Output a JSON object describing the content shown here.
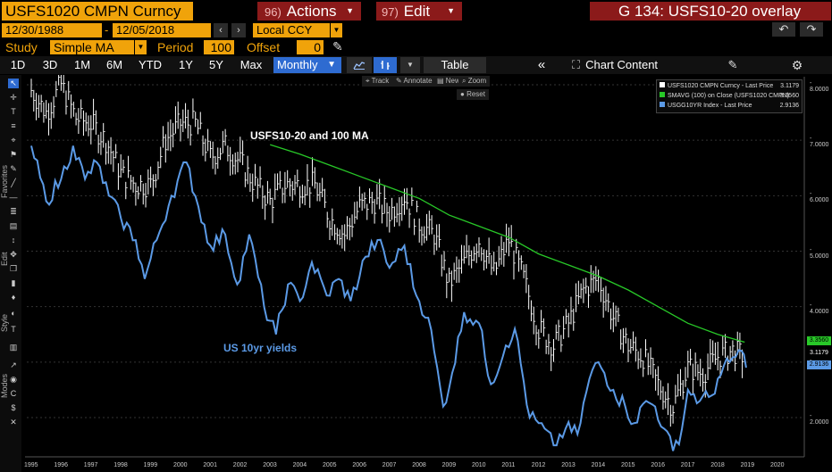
{
  "title_bar": {
    "ticker": "USFS1020 CMPN Curncy",
    "actions_num": "96)",
    "actions_label": "Actions",
    "edit_num": "97)",
    "edit_label": "Edit",
    "page_title": "G 134: USFS10-20 overlay"
  },
  "date_range": {
    "start": "12/30/1988",
    "separator": "-",
    "end": "12/05/2018",
    "currency": "Local CCY"
  },
  "study": {
    "label": "Study",
    "value": "Simple MA",
    "period_label": "Period",
    "period_value": "100",
    "offset_label": "Offset",
    "offset_value": "0"
  },
  "toolbar": {
    "timeframes": [
      "1D",
      "3D",
      "1M",
      "6M",
      "YTD",
      "1Y",
      "5Y",
      "Max"
    ],
    "frequency": "Monthly",
    "table_label": "Table",
    "chart_content_label": "Chart Content"
  },
  "side_labels": {
    "favorites": "Favorites",
    "edit": "Edit",
    "style": "Style",
    "modes": "Modes"
  },
  "mini_tools": {
    "track": "Track",
    "annotate": "Annotate",
    "news": "News",
    "zoom": "Zoom",
    "reset": "Reset"
  },
  "legend": [
    {
      "name": "USFS1020 CMPN Curncy - Last Price",
      "value": "3.1179",
      "color": "#ffffff"
    },
    {
      "name": "SMAVG (100)  on Close (USFS1020 CMPN)",
      "value": "3.3560",
      "color": "#28c828"
    },
    {
      "name": "USGG10YR Index - Last Price",
      "value": "2.9136",
      "color": "#5b9ae6"
    }
  ],
  "annotations": {
    "forward": "USFS10-20 and 100 MA",
    "yields": "US 10yr yields"
  },
  "right_tags": {
    "ma": "3.3560",
    "price": "3.1179",
    "yield": "2.9136"
  },
  "chart_data": {
    "type": "line",
    "x_labels": [
      "1995",
      "1996",
      "1997",
      "1998",
      "1999",
      "2000",
      "2001",
      "2002",
      "2003",
      "2004",
      "2005",
      "2006",
      "2007",
      "2008",
      "2009",
      "2010",
      "2011",
      "2012",
      "2013",
      "2014",
      "2015",
      "2016",
      "2017",
      "2018",
      "2019",
      "2020"
    ],
    "y_labels": [
      "8.0000",
      "7.0000",
      "6.0000",
      "5.0000",
      "4.0000",
      "3.0000",
      "2.0000"
    ],
    "ylim": [
      1.4,
      8.1
    ],
    "series": [
      {
        "name": "USFS1020 CMPN Curncy - Last Price",
        "style": "bars",
        "color": "#ffffff",
        "points": [
          [
            1995.0,
            7.9
          ],
          [
            1995.5,
            7.5
          ],
          [
            1996.0,
            8.0
          ],
          [
            1996.5,
            7.4
          ],
          [
            1997.0,
            7.3
          ],
          [
            1997.5,
            7.0
          ],
          [
            1998.0,
            6.4
          ],
          [
            1998.5,
            6.2
          ],
          [
            1999.0,
            6.2
          ],
          [
            1999.5,
            7.0
          ],
          [
            2000.0,
            7.3
          ],
          [
            2000.5,
            7.3
          ],
          [
            2001.0,
            6.7
          ],
          [
            2001.5,
            6.9
          ],
          [
            2002.0,
            6.6
          ],
          [
            2002.5,
            6.2
          ],
          [
            2003.0,
            5.9
          ],
          [
            2003.5,
            6.2
          ],
          [
            2004.0,
            6.2
          ],
          [
            2004.5,
            6.2
          ],
          [
            2005.0,
            5.6
          ],
          [
            2005.5,
            5.3
          ],
          [
            2006.0,
            5.8
          ],
          [
            2006.5,
            5.9
          ],
          [
            2007.0,
            5.7
          ],
          [
            2007.5,
            6.0
          ],
          [
            2008.0,
            5.5
          ],
          [
            2008.5,
            5.3
          ],
          [
            2009.0,
            4.4
          ],
          [
            2009.5,
            4.8
          ],
          [
            2010.0,
            5.2
          ],
          [
            2010.5,
            4.6
          ],
          [
            2011.0,
            5.2
          ],
          [
            2011.5,
            4.5
          ],
          [
            2012.0,
            3.6
          ],
          [
            2012.5,
            3.3
          ],
          [
            2013.0,
            3.7
          ],
          [
            2013.5,
            4.3
          ],
          [
            2014.0,
            4.5
          ],
          [
            2014.5,
            3.8
          ],
          [
            2015.0,
            3.3
          ],
          [
            2015.5,
            3.1
          ],
          [
            2016.0,
            2.6
          ],
          [
            2016.5,
            2.2
          ],
          [
            2017.0,
            2.9
          ],
          [
            2017.5,
            2.8
          ],
          [
            2018.0,
            3.1
          ],
          [
            2018.5,
            3.2
          ],
          [
            2018.9,
            3.1
          ]
        ]
      },
      {
        "name": "SMAVG (100)  on Close (USFS1020 CMPN)",
        "style": "line",
        "color": "#28c828",
        "points": [
          [
            2003.0,
            6.92
          ],
          [
            2004.0,
            6.75
          ],
          [
            2005.0,
            6.55
          ],
          [
            2006.0,
            6.35
          ],
          [
            2007.0,
            6.15
          ],
          [
            2008.0,
            5.95
          ],
          [
            2009.0,
            5.65
          ],
          [
            2010.0,
            5.45
          ],
          [
            2011.0,
            5.25
          ],
          [
            2012.0,
            4.95
          ],
          [
            2013.0,
            4.75
          ],
          [
            2014.0,
            4.55
          ],
          [
            2015.0,
            4.3
          ],
          [
            2016.0,
            4.0
          ],
          [
            2017.0,
            3.7
          ],
          [
            2018.0,
            3.5
          ],
          [
            2018.9,
            3.36
          ]
        ]
      },
      {
        "name": "USGG10YR Index - Last Price",
        "style": "line",
        "color": "#5b9ae6",
        "points": [
          [
            1995.0,
            6.9
          ],
          [
            1995.5,
            5.9
          ],
          [
            1996.0,
            6.3
          ],
          [
            1996.4,
            6.9
          ],
          [
            1996.8,
            6.3
          ],
          [
            1997.2,
            6.6
          ],
          [
            1997.6,
            6.0
          ],
          [
            1998.0,
            5.6
          ],
          [
            1998.5,
            5.2
          ],
          [
            1998.8,
            4.5
          ],
          [
            1999.2,
            5.2
          ],
          [
            1999.7,
            6.0
          ],
          [
            2000.2,
            6.6
          ],
          [
            2000.6,
            5.8
          ],
          [
            2001.0,
            5.1
          ],
          [
            2001.5,
            5.3
          ],
          [
            2001.9,
            4.4
          ],
          [
            2002.3,
            5.3
          ],
          [
            2002.8,
            4.0
          ],
          [
            2003.2,
            3.5
          ],
          [
            2003.6,
            4.4
          ],
          [
            2004.0,
            4.1
          ],
          [
            2004.4,
            4.8
          ],
          [
            2004.9,
            4.2
          ],
          [
            2005.3,
            4.5
          ],
          [
            2005.7,
            4.1
          ],
          [
            2006.2,
            4.9
          ],
          [
            2006.6,
            5.2
          ],
          [
            2007.0,
            4.7
          ],
          [
            2007.5,
            5.1
          ],
          [
            2007.9,
            4.2
          ],
          [
            2008.3,
            3.8
          ],
          [
            2008.8,
            2.2
          ],
          [
            2009.1,
            2.8
          ],
          [
            2009.5,
            3.9
          ],
          [
            2010.0,
            3.7
          ],
          [
            2010.4,
            2.6
          ],
          [
            2010.9,
            3.3
          ],
          [
            2011.2,
            3.6
          ],
          [
            2011.7,
            2.0
          ],
          [
            2012.0,
            1.9
          ],
          [
            2012.5,
            1.5
          ],
          [
            2012.9,
            1.8
          ],
          [
            2013.3,
            1.7
          ],
          [
            2013.7,
            2.7
          ],
          [
            2014.0,
            3.0
          ],
          [
            2014.5,
            2.5
          ],
          [
            2014.9,
            2.2
          ],
          [
            2015.2,
            1.9
          ],
          [
            2015.6,
            2.3
          ],
          [
            2015.9,
            2.2
          ],
          [
            2016.2,
            1.8
          ],
          [
            2016.5,
            1.4
          ],
          [
            2016.8,
            1.8
          ],
          [
            2017.0,
            2.5
          ],
          [
            2017.4,
            2.3
          ],
          [
            2017.8,
            2.4
          ],
          [
            2018.0,
            2.7
          ],
          [
            2018.4,
            3.0
          ],
          [
            2018.8,
            3.2
          ],
          [
            2018.95,
            2.9
          ]
        ]
      }
    ]
  }
}
